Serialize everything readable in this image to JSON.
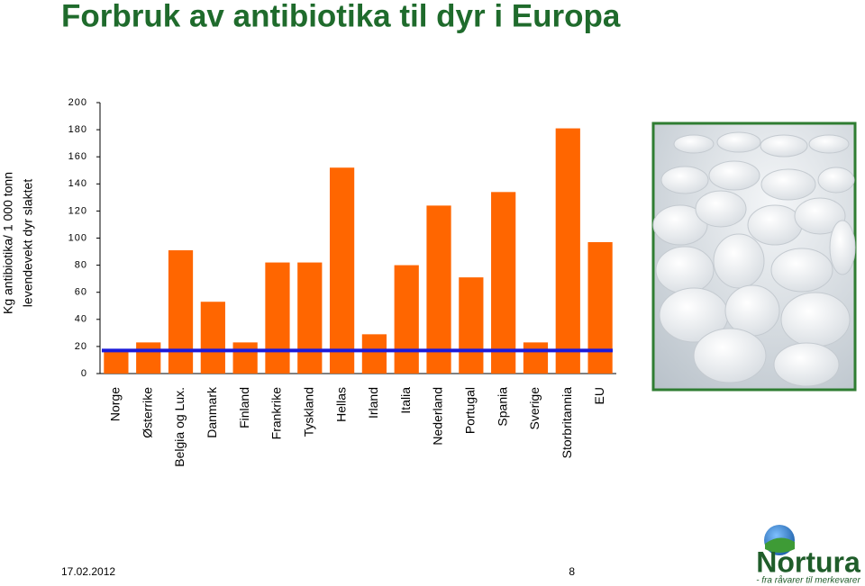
{
  "chart_data": {
    "type": "bar",
    "title": "Forbruk av antibiotika til dyr i Europa",
    "ylabel": [
      "Kg antibiotika/ 1 000 tonn",
      "levendevekt dyr slaktet"
    ],
    "categories": [
      "Norge",
      "Østerrike",
      "Belgia og Lux.",
      "Danmark",
      "Finland",
      "Frankrike",
      "Tyskland",
      "Hellas",
      "Irland",
      "Italia",
      "Nederland",
      "Portugal",
      "Spania",
      "Sverige",
      "Storbritannia",
      "EU"
    ],
    "values": [
      18,
      23,
      91,
      53,
      23,
      82,
      82,
      152,
      29,
      80,
      124,
      71,
      134,
      23,
      181,
      97
    ],
    "color": "#ff6600",
    "reference_value": 17,
    "reference_color": "#1a1adb",
    "ylim": [
      0,
      200
    ],
    "yticks": [
      0,
      20,
      40,
      60,
      80,
      100,
      120,
      140,
      160,
      180,
      200
    ],
    "grid": false
  },
  "footer": {
    "date": "17.02.2012",
    "page": "8"
  },
  "logo": {
    "name": "Nortura",
    "tagline": "- fra råvarer til merkevarer"
  }
}
